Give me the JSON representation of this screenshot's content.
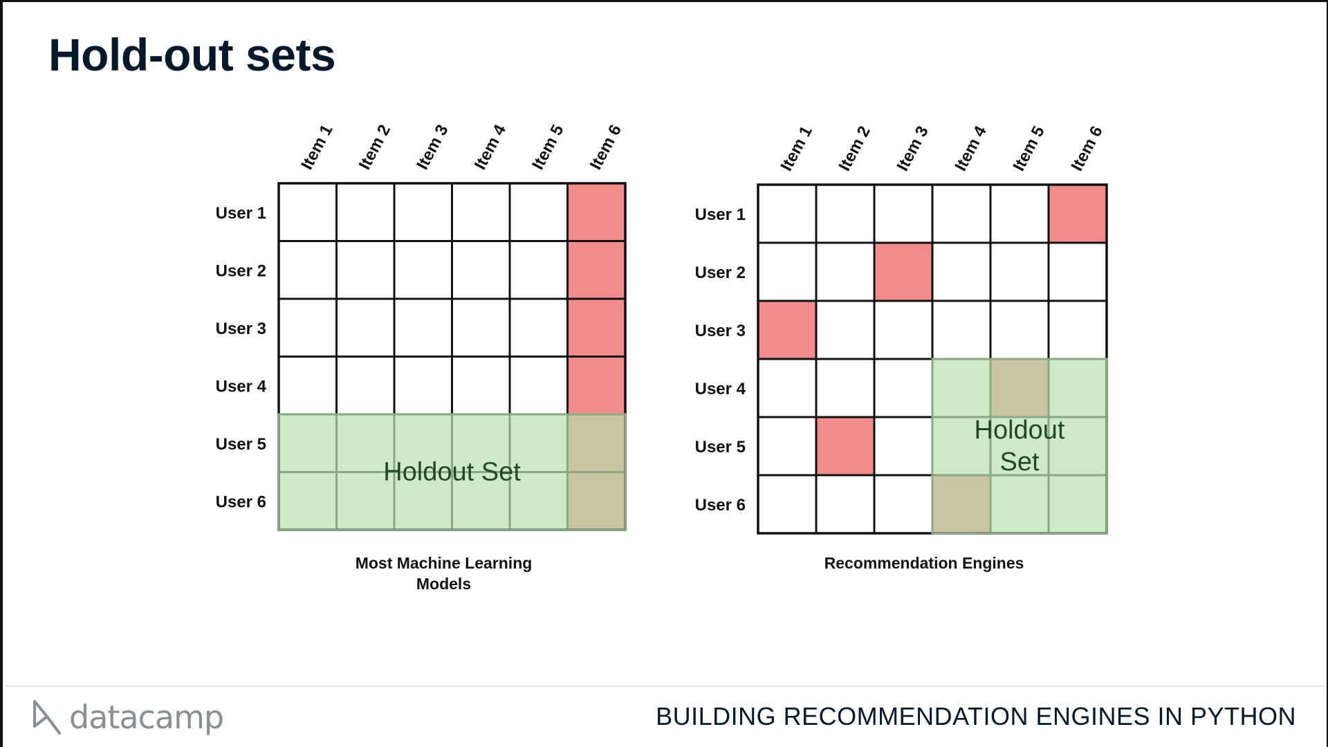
{
  "slide": {
    "title": "Hold-out sets",
    "course_title": "BUILDING RECOMMENDATION ENGINES IN PYTHON",
    "brand": "datacamp"
  },
  "diagrams": [
    {
      "caption": [
        "Most Machine Learning",
        "Models"
      ],
      "holdout_label": [
        "Holdout Set"
      ],
      "users": [
        "User 1",
        "User 2",
        "User 3",
        "User 4",
        "User 5",
        "User 6"
      ],
      "items": [
        "Item 1",
        "Item 2",
        "Item 3",
        "Item 4",
        "Item 5",
        "Item 6"
      ],
      "red_cells": [
        [
          0,
          5
        ],
        [
          1,
          5
        ],
        [
          2,
          5
        ],
        [
          3,
          5
        ]
      ],
      "holdout_rows": [
        4,
        5
      ],
      "holdout_cols": [
        0,
        1,
        2,
        3,
        4,
        5
      ],
      "overlap_cells": [
        [
          4,
          5
        ],
        [
          5,
          5
        ]
      ]
    },
    {
      "caption": [
        "Recommendation Engines"
      ],
      "holdout_label": [
        "Holdout",
        "Set"
      ],
      "users": [
        "User 1",
        "User 2",
        "User 3",
        "User 4",
        "User 5",
        "User 6"
      ],
      "items": [
        "Item 1",
        "Item 2",
        "Item 3",
        "Item 4",
        "Item 5",
        "Item 6"
      ],
      "red_cells": [
        [
          0,
          5
        ],
        [
          1,
          2
        ],
        [
          2,
          0
        ],
        [
          4,
          1
        ]
      ],
      "holdout_rows": [
        3,
        4,
        5
      ],
      "holdout_cols": [
        3,
        4,
        5
      ],
      "overlap_cells": [
        [
          3,
          4
        ],
        [
          5,
          3
        ]
      ]
    }
  ],
  "colors": {
    "rated": "#f08c8c",
    "holdout": "#cfeac6",
    "overlap": "#c9c4a2",
    "grid": "#111111",
    "holdout_grid": "#8aa884",
    "holdout_text": "#1f4a1f",
    "title": "#05192d"
  }
}
